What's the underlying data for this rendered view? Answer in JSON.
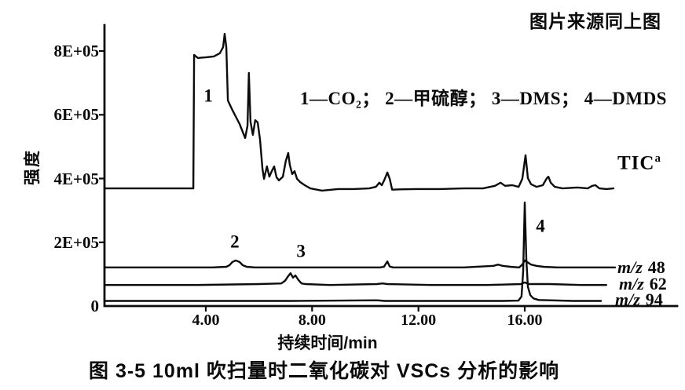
{
  "header": {
    "source_note": "图片来源同上图"
  },
  "chart_data": {
    "type": "line",
    "title": "图 3-5  10ml 吹扫量时二氧化碳对 VSCs 分析的影响",
    "xlabel": "持续时间/min",
    "ylabel": "强度",
    "xlim": [
      0.2,
      21.7
    ],
    "ylim": [
      0,
      880000
    ],
    "grid": false,
    "legend_position": "inline-top",
    "legend_note": "1—CO₂； 2—甲硫醇； 3—DMS； 4—DMDS",
    "legend_items": [
      {
        "peak": "1",
        "compound": "CO₂"
      },
      {
        "peak": "2",
        "compound": "甲硫醇"
      },
      {
        "peak": "3",
        "compound": "DMS"
      },
      {
        "peak": "4",
        "compound": "DMDS"
      }
    ],
    "x_ticks": [
      {
        "label": "4.00",
        "value": 4
      },
      {
        "label": "8.00",
        "value": 8
      },
      {
        "label": "12.00",
        "value": 12
      },
      {
        "label": "16.00",
        "value": 16
      }
    ],
    "y_ticks": [
      {
        "label": "8E+05",
        "value": 800000
      },
      {
        "label": "6E+05",
        "value": 600000
      },
      {
        "label": "4E+05",
        "value": 400000
      },
      {
        "label": "2E+05",
        "value": 200000
      },
      {
        "label": "0",
        "value": 0
      }
    ],
    "trace_labels": [
      {
        "id": "tic",
        "text": "TIC",
        "sup": "a"
      },
      {
        "id": "mz48",
        "italic": "m/z",
        "value": "48"
      },
      {
        "id": "mz62",
        "italic": "m/z",
        "value": "62"
      },
      {
        "id": "mz94",
        "italic": "m/z",
        "value": "94"
      }
    ],
    "peak_labels": [
      {
        "label": "1",
        "t": 4.09,
        "i": 660000
      },
      {
        "label": "2",
        "t": 5.09,
        "i": 202000
      },
      {
        "label": "3",
        "t": 7.58,
        "i": 172000
      },
      {
        "label": "4",
        "t": 16.59,
        "i": 251000
      }
    ],
    "series": [
      {
        "id": "tic",
        "name": "TIC",
        "points": [
          [
            0.19,
            369000
          ],
          [
            3.53,
            369000
          ],
          [
            3.56,
            788000
          ],
          [
            3.7,
            778000
          ],
          [
            4.0,
            780000
          ],
          [
            4.3,
            783000
          ],
          [
            4.53,
            793000
          ],
          [
            4.65,
            812000
          ],
          [
            4.71,
            854000
          ],
          [
            4.77,
            812000
          ],
          [
            4.83,
            645000
          ],
          [
            5.0,
            615000
          ],
          [
            5.27,
            571000
          ],
          [
            5.48,
            527000
          ],
          [
            5.57,
            566000
          ],
          [
            5.62,
            731000
          ],
          [
            5.68,
            578000
          ],
          [
            5.77,
            537000
          ],
          [
            5.86,
            583000
          ],
          [
            5.95,
            576000
          ],
          [
            6.04,
            522000
          ],
          [
            6.13,
            431000
          ],
          [
            6.19,
            399000
          ],
          [
            6.3,
            438000
          ],
          [
            6.39,
            406000
          ],
          [
            6.48,
            423000
          ],
          [
            6.57,
            438000
          ],
          [
            6.66,
            404000
          ],
          [
            6.75,
            394000
          ],
          [
            6.9,
            406000
          ],
          [
            7.01,
            455000
          ],
          [
            7.1,
            480000
          ],
          [
            7.16,
            443000
          ],
          [
            7.25,
            414000
          ],
          [
            7.34,
            423000
          ],
          [
            7.43,
            399000
          ],
          [
            7.55,
            389000
          ],
          [
            7.72,
            379000
          ],
          [
            7.93,
            369000
          ],
          [
            8.37,
            362000
          ],
          [
            8.97,
            367000
          ],
          [
            9.56,
            367000
          ],
          [
            10.15,
            369000
          ],
          [
            10.4,
            374000
          ],
          [
            10.53,
            387000
          ],
          [
            10.62,
            379000
          ],
          [
            10.71,
            394000
          ],
          [
            10.83,
            419000
          ],
          [
            10.92,
            399000
          ],
          [
            11.01,
            365000
          ],
          [
            11.3,
            366000
          ],
          [
            11.92,
            367000
          ],
          [
            12.81,
            367000
          ],
          [
            13.7,
            369000
          ],
          [
            14.43,
            369000
          ],
          [
            14.88,
            377000
          ],
          [
            15.09,
            387000
          ],
          [
            15.26,
            377000
          ],
          [
            15.53,
            379000
          ],
          [
            15.77,
            374000
          ],
          [
            15.91,
            399000
          ],
          [
            16.03,
            473000
          ],
          [
            16.12,
            401000
          ],
          [
            16.24,
            382000
          ],
          [
            16.44,
            374000
          ],
          [
            16.68,
            379000
          ],
          [
            16.83,
            401000
          ],
          [
            16.89,
            406000
          ],
          [
            16.98,
            387000
          ],
          [
            17.13,
            374000
          ],
          [
            17.42,
            369000
          ],
          [
            17.98,
            372000
          ],
          [
            18.37,
            369000
          ],
          [
            18.54,
            377000
          ],
          [
            18.66,
            379000
          ],
          [
            18.81,
            369000
          ],
          [
            19.08,
            367000
          ],
          [
            19.34,
            369000
          ]
        ]
      },
      {
        "id": "mz48",
        "name": "m/z 48",
        "points": [
          [
            0.19,
            121000
          ],
          [
            2.76,
            121000
          ],
          [
            4.24,
            121000
          ],
          [
            4.77,
            123000
          ],
          [
            4.89,
            128000
          ],
          [
            5.0,
            138000
          ],
          [
            5.12,
            143000
          ],
          [
            5.27,
            138000
          ],
          [
            5.39,
            128000
          ],
          [
            5.54,
            123000
          ],
          [
            5.86,
            121000
          ],
          [
            7.49,
            121000
          ],
          [
            9.26,
            121000
          ],
          [
            10.55,
            121000
          ],
          [
            10.7,
            123000
          ],
          [
            10.83,
            140000
          ],
          [
            10.92,
            124000
          ],
          [
            11.05,
            121000
          ],
          [
            11.92,
            121000
          ],
          [
            13.7,
            121000
          ],
          [
            14.82,
            126000
          ],
          [
            15.0,
            130000
          ],
          [
            15.17,
            126000
          ],
          [
            15.47,
            123000
          ],
          [
            15.79,
            121000
          ],
          [
            15.91,
            130000
          ],
          [
            16.0,
            143000
          ],
          [
            16.09,
            138000
          ],
          [
            16.24,
            130000
          ],
          [
            16.44,
            126000
          ],
          [
            16.71,
            123000
          ],
          [
            17.24,
            121000
          ],
          [
            18.42,
            121000
          ],
          [
            19.4,
            121000
          ]
        ]
      },
      {
        "id": "mz62",
        "name": "m/z 62",
        "points": [
          [
            0.19,
            66000
          ],
          [
            3.64,
            66000
          ],
          [
            6.01,
            69000
          ],
          [
            6.84,
            71000
          ],
          [
            6.98,
            79000
          ],
          [
            7.1,
            94000
          ],
          [
            7.19,
            103000
          ],
          [
            7.28,
            89000
          ],
          [
            7.37,
            96000
          ],
          [
            7.49,
            81000
          ],
          [
            7.6,
            71000
          ],
          [
            7.75,
            69000
          ],
          [
            8.67,
            66000
          ],
          [
            10.44,
            69000
          ],
          [
            10.65,
            71000
          ],
          [
            10.83,
            69000
          ],
          [
            12.51,
            66000
          ],
          [
            14.58,
            66000
          ],
          [
            15.85,
            69000
          ],
          [
            16.0,
            74000
          ],
          [
            16.15,
            69000
          ],
          [
            16.95,
            69000
          ],
          [
            18.13,
            66000
          ],
          [
            19.07,
            66000
          ]
        ]
      },
      {
        "id": "mz94",
        "name": "m/z 94",
        "points": [
          [
            0.19,
            16000
          ],
          [
            3.64,
            16000
          ],
          [
            7.19,
            16000
          ],
          [
            10.44,
            18000
          ],
          [
            10.74,
            16000
          ],
          [
            13.4,
            16000
          ],
          [
            15.17,
            16000
          ],
          [
            15.76,
            17000
          ],
          [
            15.88,
            30000
          ],
          [
            15.94,
            110000
          ],
          [
            16.0,
            325000
          ],
          [
            16.06,
            148000
          ],
          [
            16.12,
            60000
          ],
          [
            16.21,
            34000
          ],
          [
            16.33,
            24000
          ],
          [
            16.53,
            19000
          ],
          [
            16.95,
            18000
          ],
          [
            17.83,
            16000
          ],
          [
            18.87,
            16000
          ]
        ]
      }
    ]
  }
}
